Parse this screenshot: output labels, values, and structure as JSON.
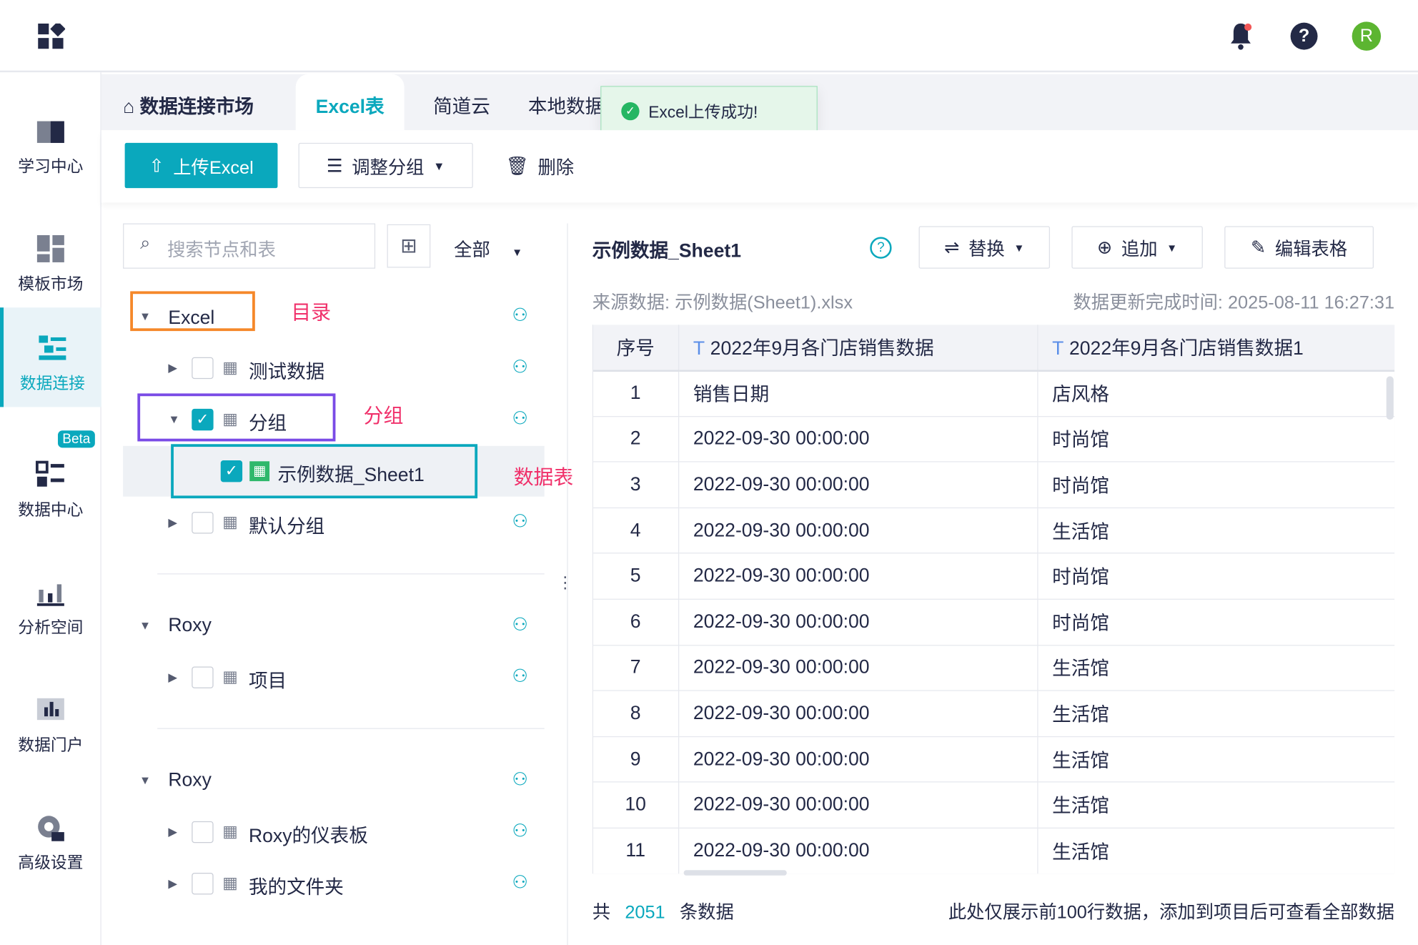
{
  "topbar": {
    "logo_icon": "app-grid-icon",
    "bell_icon": "bell-icon",
    "help_icon": "question-icon",
    "avatar": "R",
    "avatar_color": "#5cb531"
  },
  "sidebar": {
    "items": [
      {
        "label": "学习中心",
        "icon": "book-icon"
      },
      {
        "label": "模板市场",
        "icon": "template-icon"
      },
      {
        "label": "数据连接",
        "icon": "data-connect-icon",
        "active": true
      },
      {
        "label": "数据中心",
        "icon": "data-center-icon",
        "badge": "Beta"
      },
      {
        "label": "分析空间",
        "icon": "chart-icon"
      },
      {
        "label": "数据门户",
        "icon": "portal-icon"
      },
      {
        "label": "高级设置",
        "icon": "gear-icon"
      }
    ]
  },
  "tabs": {
    "home": "数据连接市场",
    "items": [
      "Excel表",
      "简道云",
      "本地数据"
    ],
    "active": 0
  },
  "toast": {
    "text": "Excel上传成功!"
  },
  "toolbar": {
    "upload": "上传Excel",
    "regroup": "调整分组",
    "delete": "删除"
  },
  "tree": {
    "search_placeholder": "搜索节点和表",
    "filter": "全部",
    "rows": [
      {
        "label": "Excel",
        "level": 0,
        "expanded": true
      },
      {
        "label": "测试数据",
        "level": 1
      },
      {
        "label": "分组",
        "level": 1,
        "expanded": true,
        "checked": true
      },
      {
        "label": "示例数据_Sheet1",
        "level": 2,
        "checked": true,
        "selected": true
      },
      {
        "label": "默认分组",
        "level": 1
      },
      {
        "label": "Roxy",
        "level": 0,
        "expanded": true
      },
      {
        "label": "项目",
        "level": 1
      },
      {
        "label": "Roxy",
        "level": 0,
        "expanded": true
      },
      {
        "label": "Roxy的仪表板",
        "level": 1
      },
      {
        "label": "我的文件夹",
        "level": 1
      }
    ]
  },
  "annotations": {
    "catalog": "目录",
    "group": "分组",
    "table": "数据表"
  },
  "detail": {
    "title": "示例数据_Sheet1",
    "replace": "替换",
    "append": "追加",
    "edit": "编辑表格",
    "source_label": "来源数据:",
    "source": "示例数据(Sheet1).xlsx",
    "updated_label": "数据更新完成时间:",
    "updated": "2025-08-11 16:27:31",
    "columns": [
      "序号",
      "2022年9月各门店销售数据",
      "2022年9月各门店销售数据1"
    ],
    "rows": [
      [
        "1",
        "销售日期",
        "店风格"
      ],
      [
        "2",
        "2022-09-30 00:00:00",
        "时尚馆"
      ],
      [
        "3",
        "2022-09-30 00:00:00",
        "时尚馆"
      ],
      [
        "4",
        "2022-09-30 00:00:00",
        "生活馆"
      ],
      [
        "5",
        "2022-09-30 00:00:00",
        "时尚馆"
      ],
      [
        "6",
        "2022-09-30 00:00:00",
        "时尚馆"
      ],
      [
        "7",
        "2022-09-30 00:00:00",
        "生活馆"
      ],
      [
        "8",
        "2022-09-30 00:00:00",
        "生活馆"
      ],
      [
        "9",
        "2022-09-30 00:00:00",
        "生活馆"
      ],
      [
        "10",
        "2022-09-30 00:00:00",
        "生活馆"
      ],
      [
        "11",
        "2022-09-30 00:00:00",
        "生活馆"
      ]
    ],
    "total_prefix": "共",
    "total": "2051",
    "total_suffix": "条数据",
    "note": "此处仅展示前100行数据，添加到项目后可查看全部数据"
  }
}
